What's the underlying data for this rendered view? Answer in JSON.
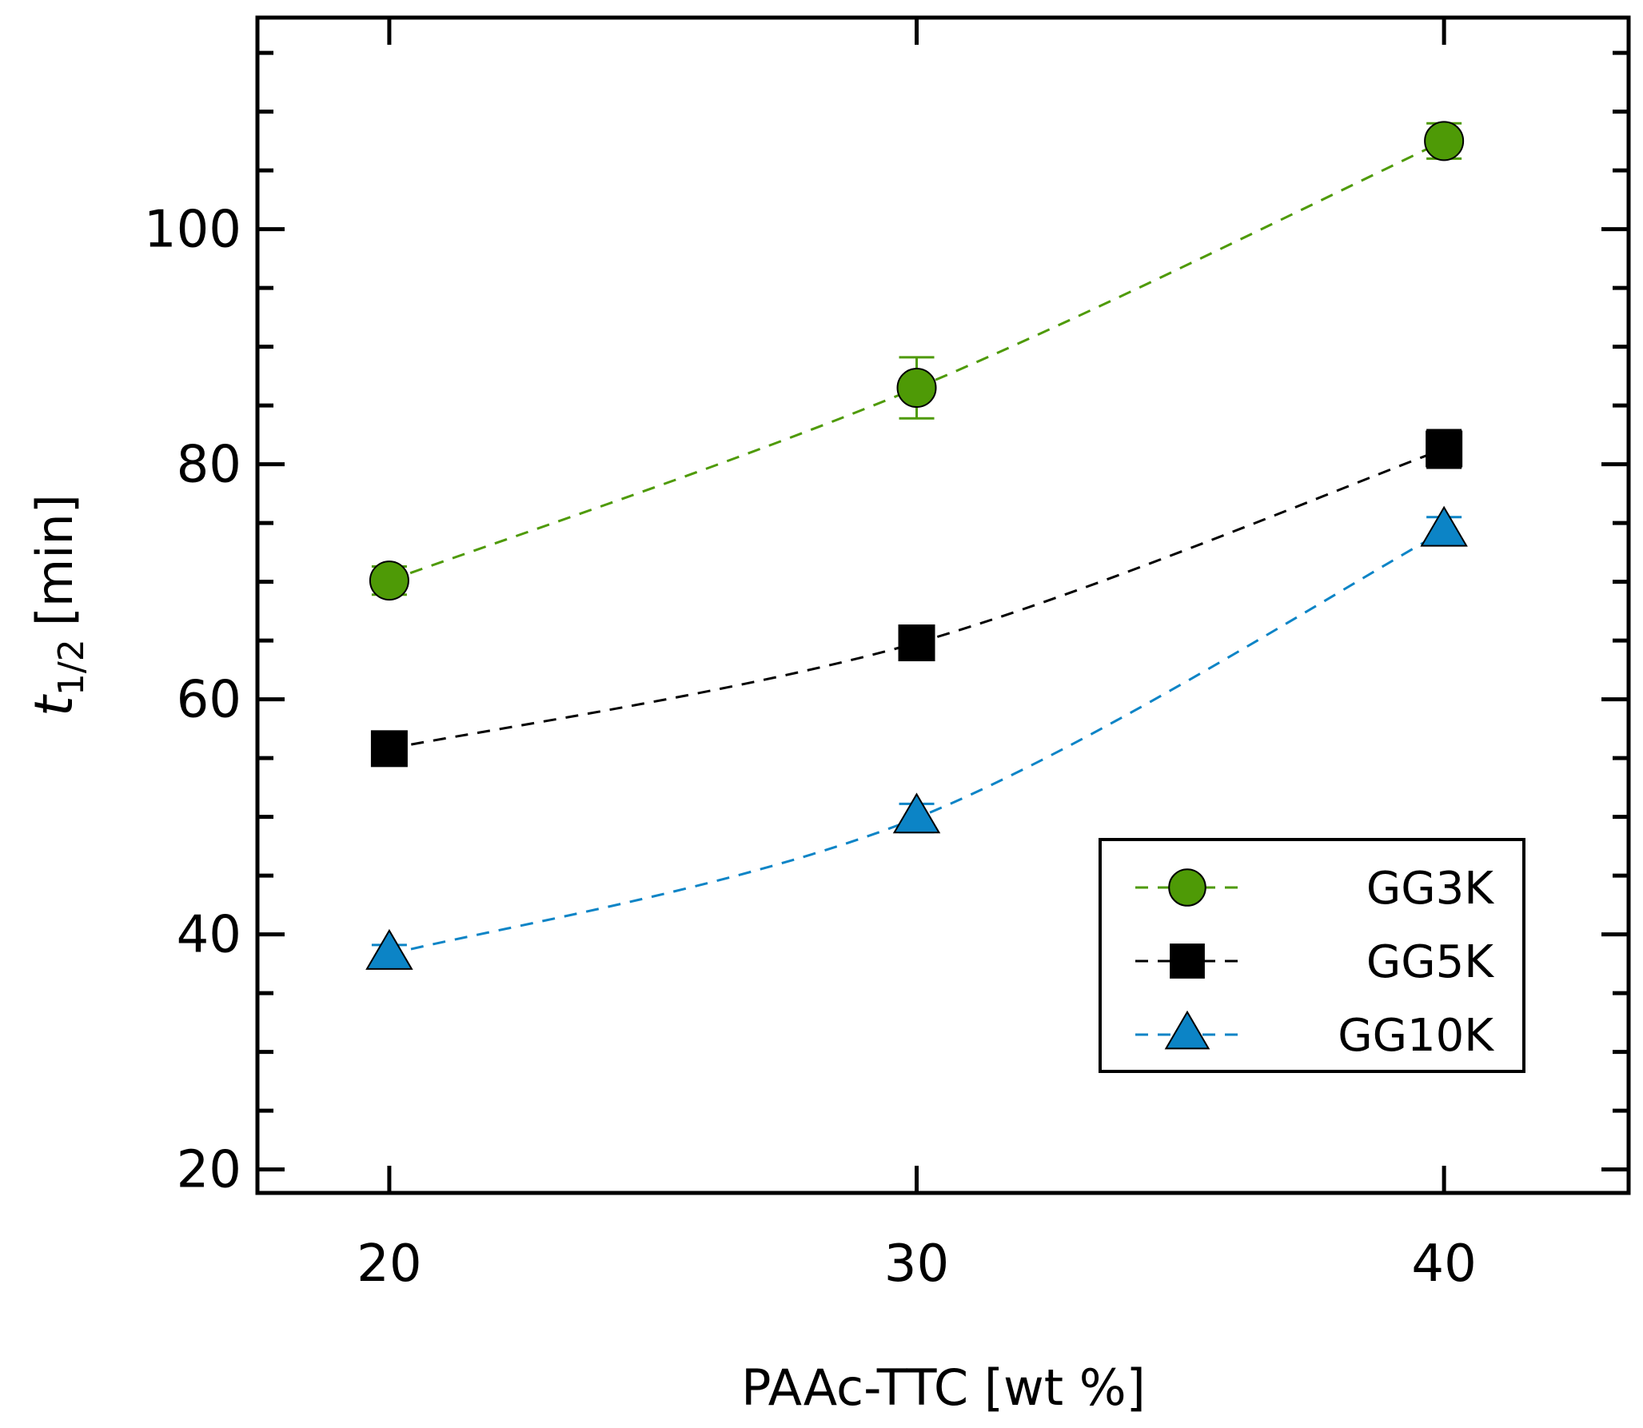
{
  "chart_data": {
    "type": "scatter",
    "xlabel": "PAAc-TTC [wt %]",
    "ylabel_main": "t",
    "ylabel_sub": "1/2",
    "ylabel_unit": "[min]",
    "xlim": [
      17.5,
      43.5
    ],
    "ylim": [
      18,
      118
    ],
    "x_ticks": [
      20,
      30,
      40
    ],
    "y_ticks": [
      20,
      40,
      60,
      80,
      100
    ],
    "y_minor_step": 5,
    "grid": false,
    "legend_position": "lower-right",
    "series": [
      {
        "name": "GG3K",
        "color": "#4e9a06",
        "marker": "circle",
        "x": [
          20,
          30,
          40
        ],
        "y": [
          70.1,
          86.5,
          107.5
        ],
        "err": [
          1.2,
          2.6,
          1.5
        ]
      },
      {
        "name": "GG5K",
        "color": "#000000",
        "marker": "square",
        "x": [
          20,
          30,
          40
        ],
        "y": [
          55.8,
          64.8,
          81.3
        ],
        "err": [
          0.9,
          1.2,
          1.6
        ]
      },
      {
        "name": "GG10K",
        "color": "#0c84c6",
        "marker": "triangle",
        "x": [
          20,
          30,
          40
        ],
        "y": [
          38.3,
          49.9,
          74.3
        ],
        "err": [
          0.8,
          1.2,
          1.2
        ]
      }
    ]
  }
}
